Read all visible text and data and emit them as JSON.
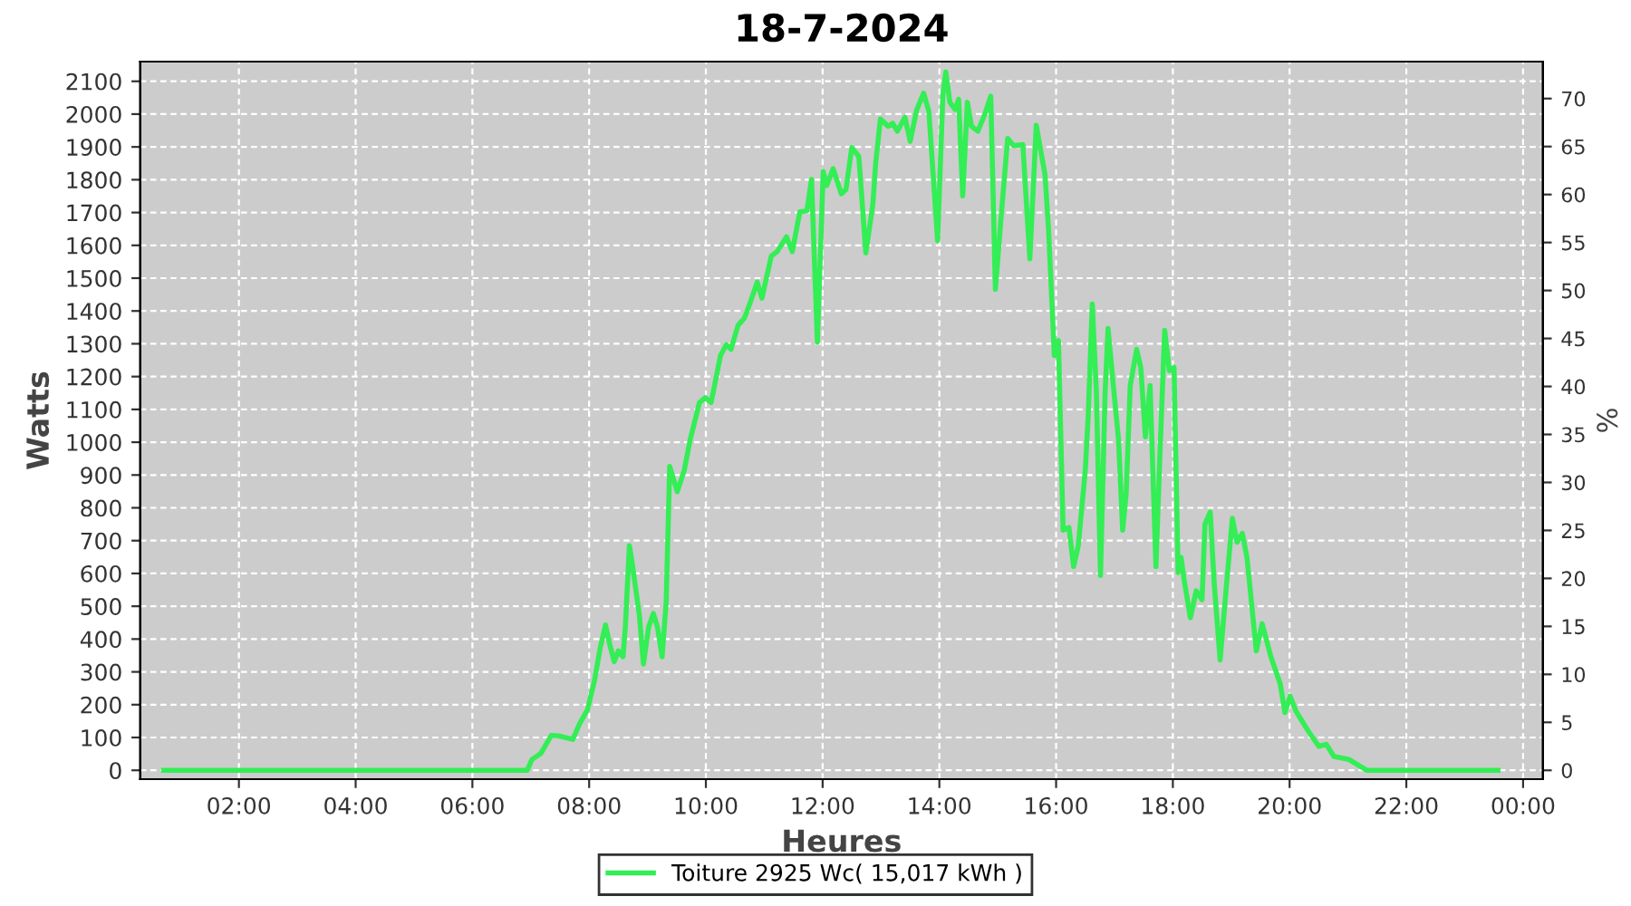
{
  "chart_data": {
    "type": "line",
    "title": "18-7-2024",
    "xlabel": "Heures",
    "ylabel": "Watts",
    "y2label": "%",
    "x": [
      0.71,
      6.94,
      7.02,
      7.17,
      7.35,
      7.48,
      7.72,
      7.84,
      7.97,
      8.09,
      8.19,
      8.28,
      8.35,
      8.43,
      8.5,
      8.58,
      8.62,
      8.69,
      8.73,
      8.86,
      8.93,
      9.02,
      9.1,
      9.17,
      9.25,
      9.32,
      9.38,
      9.51,
      9.63,
      9.73,
      9.89,
      9.99,
      10.09,
      10.25,
      10.35,
      10.43,
      10.55,
      10.66,
      10.76,
      10.88,
      10.96,
      11.12,
      11.22,
      11.38,
      11.48,
      11.61,
      11.73,
      11.81,
      11.91,
      12.01,
      12.07,
      12.18,
      12.32,
      12.4,
      12.5,
      12.62,
      12.74,
      12.86,
      12.91,
      12.99,
      13.12,
      13.2,
      13.28,
      13.41,
      13.5,
      13.61,
      13.73,
      13.82,
      13.97,
      14.06,
      14.11,
      14.18,
      14.27,
      14.33,
      14.4,
      14.48,
      14.55,
      14.66,
      14.78,
      14.88,
      14.96,
      15.05,
      15.17,
      15.27,
      15.43,
      15.55,
      15.66,
      15.81,
      15.87,
      15.97,
      16.04,
      16.12,
      16.22,
      16.3,
      16.38,
      16.5,
      16.55,
      16.62,
      16.69,
      16.76,
      16.84,
      16.89,
      16.99,
      17.07,
      17.14,
      17.2,
      17.27,
      17.38,
      17.45,
      17.53,
      17.61,
      17.71,
      17.78,
      17.86,
      17.94,
      18.02,
      18.09,
      18.14,
      18.19,
      18.3,
      18.4,
      18.5,
      18.55,
      18.64,
      18.71,
      18.81,
      18.91,
      19.02,
      19.1,
      19.19,
      19.27,
      19.43,
      19.53,
      19.68,
      19.84,
      19.92,
      20.01,
      20.11,
      20.3,
      20.5,
      20.63,
      20.76,
      21.02,
      21.32,
      23.57
    ],
    "series": [
      {
        "name": "Toiture 2925 Wc( 15,017 kWh )",
        "color": "#33ee55",
        "values": [
          0,
          0,
          33,
          51,
          106,
          105,
          94,
          143,
          184,
          272,
          373,
          443,
          386,
          331,
          364,
          346,
          437,
          685,
          640,
          474,
          324,
          437,
          478,
          437,
          346,
          513,
          926,
          849,
          915,
          1007,
          1121,
          1136,
          1121,
          1264,
          1297,
          1283,
          1356,
          1378,
          1426,
          1488,
          1439,
          1567,
          1581,
          1626,
          1581,
          1702,
          1705,
          1801,
          1305,
          1825,
          1782,
          1834,
          1757,
          1770,
          1898,
          1871,
          1577,
          1724,
          1852,
          1985,
          1963,
          1972,
          1948,
          1990,
          1917,
          2012,
          2064,
          2008,
          1614,
          2058,
          2128,
          2036,
          2014,
          2045,
          1751,
          2036,
          1963,
          1948,
          2000,
          2055,
          1466,
          1669,
          1926,
          1904,
          1907,
          1559,
          1966,
          1815,
          1650,
          1264,
          1310,
          732,
          740,
          621,
          685,
          915,
          1081,
          1421,
          1154,
          594,
          1154,
          1347,
          1154,
          1007,
          732,
          842,
          1173,
          1283,
          1228,
          1016,
          1173,
          621,
          970,
          1341,
          1218,
          1228,
          603,
          649,
          584,
          465,
          547,
          520,
          750,
          787,
          566,
          336,
          547,
          768,
          695,
          722,
          649,
          364,
          447,
          346,
          263,
          176,
          226,
          180,
          125,
          73,
          79,
          42,
          33,
          0,
          0
        ]
      }
    ],
    "xlim": [
      0.31,
      24.34
    ],
    "xticks": [
      {
        "value": 2,
        "label": "02:00"
      },
      {
        "value": 4,
        "label": "04:00"
      },
      {
        "value": 6,
        "label": "06:00"
      },
      {
        "value": 8,
        "label": "08:00"
      },
      {
        "value": 10,
        "label": "10:00"
      },
      {
        "value": 12,
        "label": "12:00"
      },
      {
        "value": 14,
        "label": "14:00"
      },
      {
        "value": 16,
        "label": "16:00"
      },
      {
        "value": 18,
        "label": "18:00"
      },
      {
        "value": 20,
        "label": "20:00"
      },
      {
        "value": 22,
        "label": "22:00"
      },
      {
        "value": 24,
        "label": "00:00"
      }
    ],
    "ylim": [
      -27,
      2160
    ],
    "yticks": [
      0,
      100,
      200,
      300,
      400,
      500,
      600,
      700,
      800,
      900,
      1000,
      1100,
      1200,
      1300,
      1400,
      1500,
      1600,
      1700,
      1800,
      1900,
      2000,
      2100
    ],
    "y2lim": [
      -0.92,
      73.85
    ],
    "y2ticks": [
      0,
      5,
      10,
      15,
      20,
      25,
      30,
      35,
      40,
      45,
      50,
      55,
      60,
      65,
      70
    ],
    "grid": true,
    "legend": "bottom",
    "marker": "none",
    "line_style": "solid"
  }
}
